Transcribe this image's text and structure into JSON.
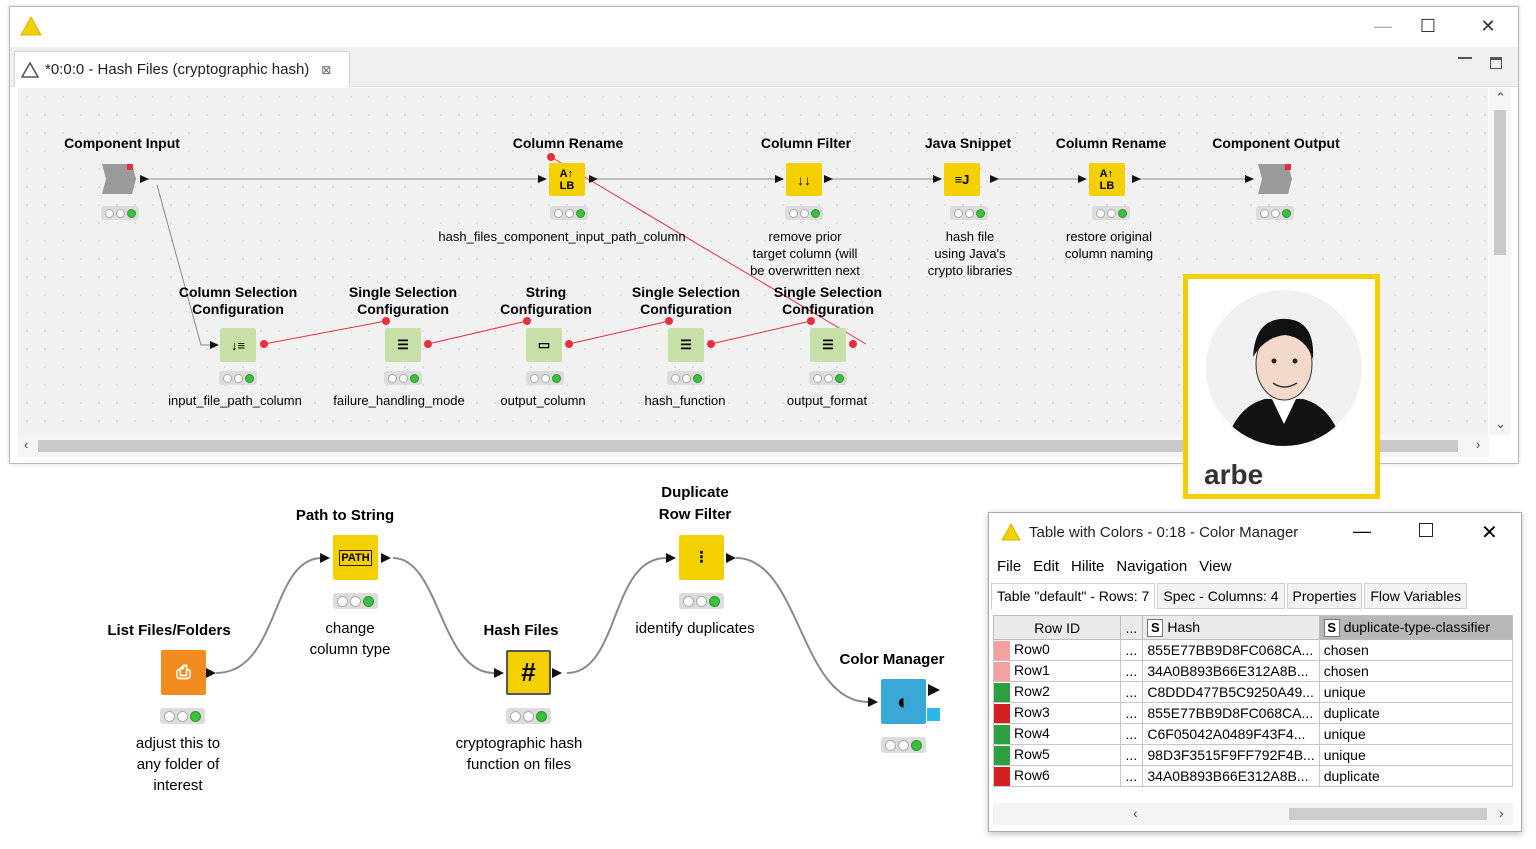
{
  "window": {
    "tab_title": "*0:0:0 - Hash Files (cryptographic hash)",
    "close_tab": "⊠",
    "minimize": "—",
    "maximize": "☐",
    "close": "✕"
  },
  "component_nodes": [
    {
      "title": "Component Input",
      "label": ""
    },
    {
      "title": "Column Rename",
      "label": "hash_files_component_input_path_column"
    },
    {
      "title": "Column Filter",
      "label": "remove prior\ntarget column (will\nbe overwritten next"
    },
    {
      "title": "Java Snippet",
      "label": "hash file\nusing Java's\ncrypto libraries"
    },
    {
      "title": "Column Rename",
      "label": "restore original\ncolumn naming"
    },
    {
      "title": "Component Output",
      "label": ""
    }
  ],
  "config_nodes": [
    {
      "title": "Column Selection\nConfiguration",
      "label": "input_file_path_column"
    },
    {
      "title": "Single Selection\nConfiguration",
      "label": "failure_handling_mode"
    },
    {
      "title": "String\nConfiguration",
      "label": "output_column"
    },
    {
      "title": "Single Selection\nConfiguration",
      "label": "hash_function"
    },
    {
      "title": "Single Selection\nConfiguration",
      "label": "output_format"
    }
  ],
  "workflow_nodes": [
    {
      "title": "List Files/Folders",
      "label": "adjust this to\nany folder of\ninterest"
    },
    {
      "title": "Path to String",
      "label": "change\ncolumn type"
    },
    {
      "title": "Hash Files",
      "label": "cryptographic hash\nfunction on files"
    },
    {
      "title": "Duplicate\nRow Filter",
      "label": "identify duplicates"
    },
    {
      "title": "Color Manager",
      "label": ""
    }
  ],
  "avatar": {
    "name": "arbe"
  },
  "table_window": {
    "title": "Table with Colors - 0:18 - Color Manager",
    "menu": [
      "File",
      "Edit",
      "Hilite",
      "Navigation",
      "View"
    ],
    "tabs": [
      "Table \"default\" - Rows: 7",
      "Spec - Columns: 4",
      "Properties",
      "Flow Variables"
    ],
    "columns": [
      "Row ID",
      "...",
      "Hash",
      "duplicate-type-classifier"
    ],
    "column_type": "S",
    "rows": [
      {
        "id": "Row0",
        "ellipsis": "...",
        "hash": "855E77BB9D8FC068CA...",
        "cls": "chosen",
        "color": "#f4a0a0"
      },
      {
        "id": "Row1",
        "ellipsis": "...",
        "hash": "34A0B893B66E312A8B...",
        "cls": "chosen",
        "color": "#f4a0a0"
      },
      {
        "id": "Row2",
        "ellipsis": "...",
        "hash": "C8DDD477B5C9250A49...",
        "cls": "unique",
        "color": "#2e9e3e"
      },
      {
        "id": "Row3",
        "ellipsis": "...",
        "hash": "855E77BB9D8FC068CA...",
        "cls": "duplicate",
        "color": "#d42020"
      },
      {
        "id": "Row4",
        "ellipsis": "...",
        "hash": "C6F05042A0489F43F4...",
        "cls": "unique",
        "color": "#2e9e3e"
      },
      {
        "id": "Row5",
        "ellipsis": "...",
        "hash": "98D3F3515F9FF792F4B...",
        "cls": "unique",
        "color": "#2e9e3e"
      },
      {
        "id": "Row6",
        "ellipsis": "...",
        "hash": "34A0B893B66E312A8B...",
        "cls": "duplicate",
        "color": "#d42020"
      }
    ]
  },
  "colors": {
    "node_yellow": "#f5d000",
    "node_orange": "#f28c1e",
    "node_blue": "#3ba7d6",
    "config_green": "#c6e0a8",
    "flow_var_red": "#e8303c",
    "accent": "#f5d000"
  }
}
